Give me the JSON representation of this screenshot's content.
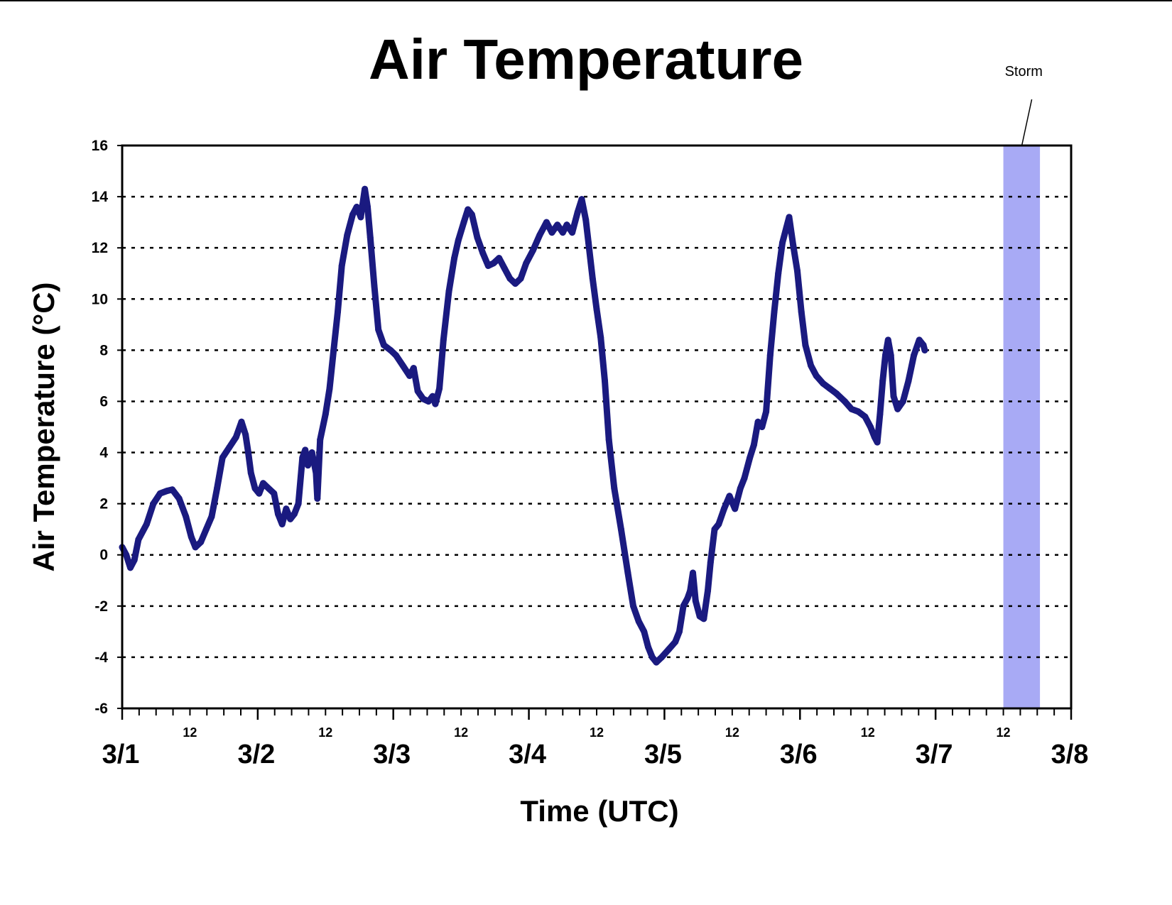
{
  "chart_data": {
    "type": "line",
    "title": "Air Temperature",
    "xlabel": "Time (UTC)",
    "ylabel": "Air Temperature (°C)",
    "x_unit": "days since 3/1 00 UTC",
    "xlim": [
      0,
      7
    ],
    "ylim": [
      -6,
      16
    ],
    "yticks": [
      -6,
      -4,
      -2,
      0,
      2,
      4,
      6,
      8,
      10,
      12,
      14,
      16
    ],
    "grid": "horizontal dotted",
    "day_labels": [
      {
        "x": 0,
        "label": "3/1"
      },
      {
        "x": 1,
        "label": "3/2"
      },
      {
        "x": 2,
        "label": "3/3"
      },
      {
        "x": 3,
        "label": "3/4"
      },
      {
        "x": 4,
        "label": "3/5"
      },
      {
        "x": 5,
        "label": "3/6"
      },
      {
        "x": 6,
        "label": "3/7"
      },
      {
        "x": 7,
        "label": "3/8"
      }
    ],
    "noon_labels": [
      {
        "x": 0.5,
        "label": "12"
      },
      {
        "x": 1.5,
        "label": "12"
      },
      {
        "x": 2.5,
        "label": "12"
      },
      {
        "x": 3.5,
        "label": "12"
      },
      {
        "x": 4.5,
        "label": "12"
      },
      {
        "x": 5.5,
        "label": "12"
      },
      {
        "x": 6.5,
        "label": "12"
      }
    ],
    "minor_tick_hours": 3,
    "annotation": {
      "label": "Storm",
      "x_start": 6.5,
      "x_end": 6.77,
      "color": "#a8aaf5"
    },
    "series": [
      {
        "color": "#1a1a80",
        "points": [
          [
            0.0,
            0.3
          ],
          [
            0.03,
            0.0
          ],
          [
            0.06,
            -0.5
          ],
          [
            0.09,
            -0.2
          ],
          [
            0.12,
            0.6
          ],
          [
            0.18,
            1.2
          ],
          [
            0.23,
            2.0
          ],
          [
            0.28,
            2.4
          ],
          [
            0.33,
            2.5
          ],
          [
            0.37,
            2.55
          ],
          [
            0.42,
            2.2
          ],
          [
            0.47,
            1.5
          ],
          [
            0.51,
            0.7
          ],
          [
            0.54,
            0.3
          ],
          [
            0.58,
            0.5
          ],
          [
            0.62,
            1.0
          ],
          [
            0.66,
            1.5
          ],
          [
            0.7,
            2.6
          ],
          [
            0.74,
            3.8
          ],
          [
            0.79,
            4.2
          ],
          [
            0.84,
            4.6
          ],
          [
            0.88,
            5.2
          ],
          [
            0.91,
            4.7
          ],
          [
            0.93,
            4.0
          ],
          [
            0.95,
            3.2
          ],
          [
            0.98,
            2.6
          ],
          [
            1.01,
            2.4
          ],
          [
            1.04,
            2.8
          ],
          [
            1.08,
            2.6
          ],
          [
            1.12,
            2.4
          ],
          [
            1.15,
            1.6
          ],
          [
            1.18,
            1.2
          ],
          [
            1.21,
            1.8
          ],
          [
            1.24,
            1.4
          ],
          [
            1.27,
            1.6
          ],
          [
            1.3,
            2.0
          ],
          [
            1.33,
            3.8
          ],
          [
            1.35,
            4.1
          ],
          [
            1.37,
            3.5
          ],
          [
            1.4,
            4.0
          ],
          [
            1.43,
            3.2
          ],
          [
            1.44,
            2.2
          ],
          [
            1.46,
            4.5
          ],
          [
            1.5,
            5.5
          ],
          [
            1.53,
            6.5
          ],
          [
            1.56,
            8.0
          ],
          [
            1.59,
            9.5
          ],
          [
            1.62,
            11.3
          ],
          [
            1.66,
            12.5
          ],
          [
            1.7,
            13.3
          ],
          [
            1.73,
            13.6
          ],
          [
            1.76,
            13.2
          ],
          [
            1.79,
            14.3
          ],
          [
            1.81,
            13.6
          ],
          [
            1.83,
            12.4
          ],
          [
            1.86,
            10.5
          ],
          [
            1.89,
            8.8
          ],
          [
            1.93,
            8.2
          ],
          [
            1.98,
            8.0
          ],
          [
            2.02,
            7.8
          ],
          [
            2.07,
            7.4
          ],
          [
            2.12,
            7.0
          ],
          [
            2.15,
            7.3
          ],
          [
            2.18,
            6.4
          ],
          [
            2.22,
            6.1
          ],
          [
            2.26,
            6.0
          ],
          [
            2.29,
            6.2
          ],
          [
            2.31,
            5.9
          ],
          [
            2.34,
            6.5
          ],
          [
            2.37,
            8.4
          ],
          [
            2.41,
            10.3
          ],
          [
            2.45,
            11.6
          ],
          [
            2.48,
            12.3
          ],
          [
            2.52,
            13.0
          ],
          [
            2.55,
            13.5
          ],
          [
            2.58,
            13.3
          ],
          [
            2.62,
            12.4
          ],
          [
            2.66,
            11.8
          ],
          [
            2.7,
            11.3
          ],
          [
            2.74,
            11.4
          ],
          [
            2.78,
            11.6
          ],
          [
            2.82,
            11.2
          ],
          [
            2.86,
            10.8
          ],
          [
            2.9,
            10.6
          ],
          [
            2.94,
            10.8
          ],
          [
            2.98,
            11.4
          ],
          [
            3.03,
            11.9
          ],
          [
            3.08,
            12.5
          ],
          [
            3.13,
            13.0
          ],
          [
            3.17,
            12.6
          ],
          [
            3.21,
            12.9
          ],
          [
            3.25,
            12.6
          ],
          [
            3.28,
            12.9
          ],
          [
            3.32,
            12.6
          ],
          [
            3.36,
            13.4
          ],
          [
            3.39,
            13.9
          ],
          [
            3.42,
            13.1
          ],
          [
            3.44,
            12.2
          ],
          [
            3.47,
            10.8
          ],
          [
            3.5,
            9.6
          ],
          [
            3.53,
            8.5
          ],
          [
            3.56,
            6.8
          ],
          [
            3.59,
            4.5
          ],
          [
            3.63,
            2.6
          ],
          [
            3.68,
            1.0
          ],
          [
            3.73,
            -0.7
          ],
          [
            3.77,
            -2.0
          ],
          [
            3.81,
            -2.6
          ],
          [
            3.85,
            -3.0
          ],
          [
            3.88,
            -3.6
          ],
          [
            3.91,
            -4.0
          ],
          [
            3.94,
            -4.2
          ],
          [
            3.98,
            -4.0
          ],
          [
            4.03,
            -3.7
          ],
          [
            4.08,
            -3.4
          ],
          [
            4.11,
            -3.0
          ],
          [
            4.14,
            -2.0
          ],
          [
            4.17,
            -1.7
          ],
          [
            4.19,
            -1.4
          ],
          [
            4.21,
            -0.7
          ],
          [
            4.23,
            -1.8
          ],
          [
            4.26,
            -2.4
          ],
          [
            4.29,
            -2.5
          ],
          [
            4.32,
            -1.4
          ],
          [
            4.34,
            -0.3
          ],
          [
            4.37,
            1.0
          ],
          [
            4.4,
            1.2
          ],
          [
            4.44,
            1.8
          ],
          [
            4.48,
            2.3
          ],
          [
            4.52,
            1.8
          ],
          [
            4.56,
            2.6
          ],
          [
            4.59,
            3.0
          ],
          [
            4.63,
            3.8
          ],
          [
            4.66,
            4.3
          ],
          [
            4.69,
            5.2
          ],
          [
            4.72,
            5.0
          ],
          [
            4.75,
            5.6
          ],
          [
            4.78,
            7.8
          ],
          [
            4.81,
            9.5
          ],
          [
            4.84,
            11.0
          ],
          [
            4.87,
            12.2
          ],
          [
            4.9,
            12.8
          ],
          [
            4.92,
            13.2
          ],
          [
            4.95,
            12.1
          ],
          [
            4.98,
            11.1
          ],
          [
            5.01,
            9.5
          ],
          [
            5.04,
            8.2
          ],
          [
            5.08,
            7.4
          ],
          [
            5.12,
            7.0
          ],
          [
            5.17,
            6.7
          ],
          [
            5.22,
            6.5
          ],
          [
            5.27,
            6.3
          ],
          [
            5.33,
            6.0
          ],
          [
            5.38,
            5.7
          ],
          [
            5.43,
            5.6
          ],
          [
            5.48,
            5.4
          ],
          [
            5.52,
            5.0
          ],
          [
            5.55,
            4.6
          ],
          [
            5.57,
            4.4
          ],
          [
            5.59,
            5.5
          ],
          [
            5.61,
            6.8
          ],
          [
            5.63,
            7.8
          ],
          [
            5.65,
            8.4
          ],
          [
            5.67,
            7.8
          ],
          [
            5.69,
            6.2
          ],
          [
            5.72,
            5.7
          ],
          [
            5.76,
            6.0
          ],
          [
            5.8,
            6.8
          ],
          [
            5.84,
            7.8
          ],
          [
            5.88,
            8.4
          ],
          [
            5.91,
            8.2
          ],
          [
            5.92,
            8.0
          ]
        ]
      }
    ]
  }
}
